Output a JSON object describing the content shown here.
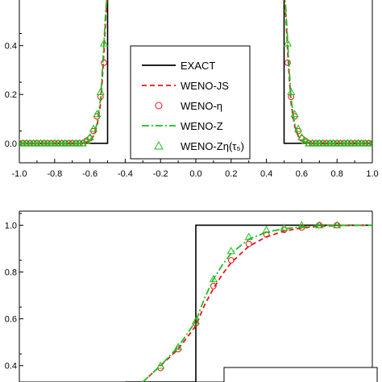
{
  "chart_data": [
    {
      "type": "line",
      "title": "",
      "xlabel": "",
      "ylabel": "",
      "xlim": [
        -1.0,
        1.0
      ],
      "ylim": [
        -0.08,
        0.62
      ],
      "x_ticks": [
        "-1.0",
        "-0.8",
        "-0.6",
        "-0.4",
        "-0.2",
        "0.0",
        "0.2",
        "0.4",
        "0.6",
        "0.8",
        "1.0"
      ],
      "x_tick_values": [
        -1.0,
        -0.8,
        -0.6,
        -0.4,
        -0.2,
        0.0,
        0.2,
        0.4,
        0.6,
        0.8,
        1.0
      ],
      "y_ticks": [
        "0.0",
        "0.2",
        "0.4"
      ],
      "y_tick_values": [
        0.0,
        0.2,
        0.4
      ],
      "legend": {
        "placement": "center",
        "entries": [
          {
            "label": "EXACT",
            "style": "solid-line",
            "color": "#000000"
          },
          {
            "label": "WENO-JS",
            "style": "dashed-line",
            "color": "#e8141b"
          },
          {
            "label": "WENO-η",
            "style": "circle-marker",
            "color": "#e8141b"
          },
          {
            "label": "WENO-Z",
            "style": "dashdot-line",
            "color": "#1fbf1f"
          },
          {
            "label": "WENO-Zη(τ₅)",
            "style": "triangle-marker",
            "color": "#1fbf1f"
          }
        ]
      },
      "series": [
        {
          "name": "EXACT",
          "color": "#000000",
          "x": [
            -1.0,
            -0.5,
            -0.5,
            0.5,
            0.5,
            1.0
          ],
          "y": [
            0.0,
            0.0,
            0.62,
            0.62,
            0.0,
            0.0
          ]
        },
        {
          "name": "WENO-JS",
          "color": "#e8141b",
          "x": [
            -1.0,
            -0.66,
            -0.62,
            -0.6,
            -0.58,
            -0.56,
            -0.54,
            -0.53,
            -0.52,
            -0.51,
            -0.5,
            0.5,
            0.51,
            0.52,
            0.53,
            0.54,
            0.56,
            0.58,
            0.6,
            0.62,
            0.66,
            1.0
          ],
          "y": [
            0.0,
            0.0,
            0.005,
            0.01,
            0.03,
            0.07,
            0.16,
            0.26,
            0.38,
            0.52,
            0.62,
            0.62,
            0.52,
            0.38,
            0.26,
            0.16,
            0.07,
            0.03,
            0.01,
            0.005,
            0.0,
            0.0
          ]
        },
        {
          "name": "WENO-η",
          "color": "#e8141b",
          "x": [
            -1.0,
            -0.98,
            -0.96,
            -0.94,
            -0.92,
            -0.9,
            -0.88,
            -0.86,
            -0.84,
            -0.82,
            -0.8,
            -0.78,
            -0.76,
            -0.74,
            -0.72,
            -0.7,
            -0.68,
            -0.66,
            -0.64,
            -0.62,
            -0.6,
            -0.58,
            -0.56,
            -0.54,
            -0.52,
            0.52,
            0.54,
            0.56,
            0.58,
            0.6,
            0.62,
            0.64,
            0.66,
            0.68,
            0.7,
            0.72,
            0.74,
            0.76,
            0.78,
            0.8,
            0.82,
            0.84,
            0.86,
            0.88,
            0.9,
            0.92,
            0.94,
            0.96,
            0.98,
            1.0
          ],
          "y": [
            0.0,
            0.0,
            0.0,
            0.0,
            0.0,
            0.0,
            0.0,
            0.0,
            0.0,
            0.0,
            0.0,
            0.0,
            0.0,
            0.0,
            0.0,
            0.0,
            0.0,
            0.0,
            0.0,
            0.01,
            0.02,
            0.05,
            0.11,
            0.19,
            0.33,
            0.33,
            0.19,
            0.11,
            0.05,
            0.02,
            0.01,
            0.0,
            0.0,
            0.0,
            0.0,
            0.0,
            0.0,
            0.0,
            0.0,
            0.0,
            0.0,
            0.0,
            0.0,
            0.0,
            0.0,
            0.0,
            0.0,
            0.0,
            0.0,
            0.0
          ]
        },
        {
          "name": "WENO-Z",
          "color": "#1fbf1f",
          "x": [
            -1.0,
            -0.66,
            -0.62,
            -0.6,
            -0.58,
            -0.56,
            -0.54,
            -0.53,
            -0.52,
            -0.51,
            -0.5,
            0.5,
            0.51,
            0.52,
            0.53,
            0.54,
            0.56,
            0.58,
            0.6,
            0.62,
            0.66,
            1.0
          ],
          "y": [
            0.0,
            0.0,
            0.006,
            0.012,
            0.035,
            0.08,
            0.18,
            0.29,
            0.42,
            0.55,
            0.62,
            0.62,
            0.55,
            0.42,
            0.29,
            0.18,
            0.08,
            0.035,
            0.012,
            0.006,
            0.0,
            0.0
          ]
        },
        {
          "name": "WENO-Zη(τ₅)",
          "color": "#1fbf1f",
          "x": [
            -1.0,
            -0.98,
            -0.96,
            -0.94,
            -0.92,
            -0.9,
            -0.88,
            -0.86,
            -0.84,
            -0.82,
            -0.8,
            -0.78,
            -0.76,
            -0.74,
            -0.72,
            -0.7,
            -0.68,
            -0.66,
            -0.64,
            -0.62,
            -0.6,
            -0.58,
            -0.56,
            -0.54,
            -0.52,
            0.52,
            0.54,
            0.56,
            0.58,
            0.6,
            0.62,
            0.64,
            0.66,
            0.68,
            0.7,
            0.72,
            0.74,
            0.76,
            0.78,
            0.8,
            0.82,
            0.84,
            0.86,
            0.88,
            0.9,
            0.92,
            0.94,
            0.96,
            0.98,
            1.0
          ],
          "y": [
            0.0,
            0.0,
            0.0,
            0.0,
            0.0,
            0.0,
            0.0,
            0.0,
            0.0,
            0.0,
            0.0,
            0.0,
            0.0,
            0.0,
            0.0,
            0.0,
            0.0,
            0.0,
            0.0,
            0.01,
            0.025,
            0.06,
            0.12,
            0.21,
            0.41,
            0.41,
            0.21,
            0.12,
            0.06,
            0.025,
            0.01,
            0.0,
            0.0,
            0.0,
            0.0,
            0.0,
            0.0,
            0.0,
            0.0,
            0.0,
            0.0,
            0.0,
            0.0,
            0.0,
            0.0,
            0.0,
            0.0,
            0.0,
            0.0,
            0.0
          ]
        }
      ]
    },
    {
      "type": "line",
      "title": "",
      "xlabel": "",
      "ylabel": "",
      "xlim": [
        -1.0,
        1.0
      ],
      "ylim": [
        0.33,
        1.06
      ],
      "x_ticks": [],
      "x_tick_values": [],
      "y_ticks": [
        "1.0",
        "0.8",
        "0.6",
        "0.4"
      ],
      "y_tick_values": [
        1.0,
        0.8,
        0.6,
        0.4
      ],
      "legend": {
        "placement": "bottom-right",
        "entries": []
      },
      "series": [
        {
          "name": "EXACT",
          "color": "#000000",
          "x": [
            -0.4,
            0.0,
            0.0,
            1.0
          ],
          "y": [
            0.33,
            0.33,
            1.0,
            1.0
          ]
        },
        {
          "name": "WENO-JS",
          "color": "#e8141b",
          "x": [
            -0.3,
            -0.2,
            -0.1,
            0.0,
            0.05,
            0.1,
            0.15,
            0.2,
            0.3,
            0.4,
            0.5,
            0.6,
            0.7,
            0.8,
            1.0
          ],
          "y": [
            0.33,
            0.4,
            0.47,
            0.57,
            0.66,
            0.73,
            0.79,
            0.84,
            0.91,
            0.95,
            0.975,
            0.988,
            0.995,
            0.998,
            1.0
          ]
        },
        {
          "name": "WENO-η",
          "color": "#e8141b",
          "x": [
            -0.2,
            -0.1,
            0.0,
            0.1,
            0.2,
            0.3,
            0.4,
            0.5,
            0.6,
            0.7,
            0.8
          ],
          "y": [
            0.39,
            0.47,
            0.58,
            0.74,
            0.85,
            0.92,
            0.96,
            0.98,
            0.99,
            1.0,
            1.0
          ]
        },
        {
          "name": "WENO-Z",
          "color": "#1fbf1f",
          "x": [
            -0.3,
            -0.2,
            -0.1,
            0.0,
            0.05,
            0.1,
            0.15,
            0.2,
            0.3,
            0.4,
            0.5,
            0.6,
            0.7,
            0.8,
            1.0
          ],
          "y": [
            0.33,
            0.4,
            0.48,
            0.59,
            0.69,
            0.77,
            0.83,
            0.88,
            0.94,
            0.97,
            0.985,
            0.993,
            0.998,
            1.0,
            1.0
          ]
        },
        {
          "name": "WENO-Zη(τ₅)",
          "color": "#1fbf1f",
          "x": [
            -0.2,
            -0.1,
            0.0,
            0.1,
            0.2,
            0.3,
            0.4,
            0.5,
            0.6,
            0.7,
            0.8
          ],
          "y": [
            0.4,
            0.48,
            0.59,
            0.77,
            0.89,
            0.95,
            0.98,
            0.99,
            1.0,
            1.0,
            1.0
          ]
        }
      ]
    }
  ]
}
